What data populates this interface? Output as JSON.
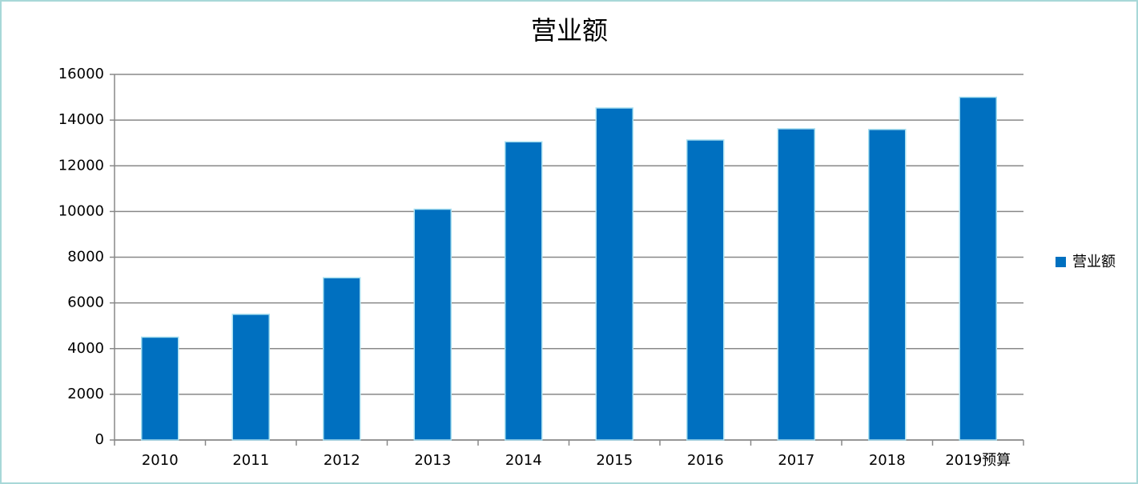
{
  "chart_data": {
    "type": "bar",
    "title": "营业额",
    "categories": [
      "2010",
      "2011",
      "2012",
      "2013",
      "2014",
      "2015",
      "2016",
      "2017",
      "2018",
      "2019预算"
    ],
    "series": [
      {
        "name": "营业额",
        "color": "#0070c0",
        "values": [
          4500,
          5500,
          7100,
          10100,
          13050,
          14530,
          13130,
          13620,
          13590,
          15000
        ]
      }
    ],
    "ylim": [
      0,
      16000
    ],
    "yticks": [
      0,
      2000,
      4000,
      6000,
      8000,
      10000,
      12000,
      14000,
      16000
    ],
    "grid": true,
    "legend": "right"
  }
}
